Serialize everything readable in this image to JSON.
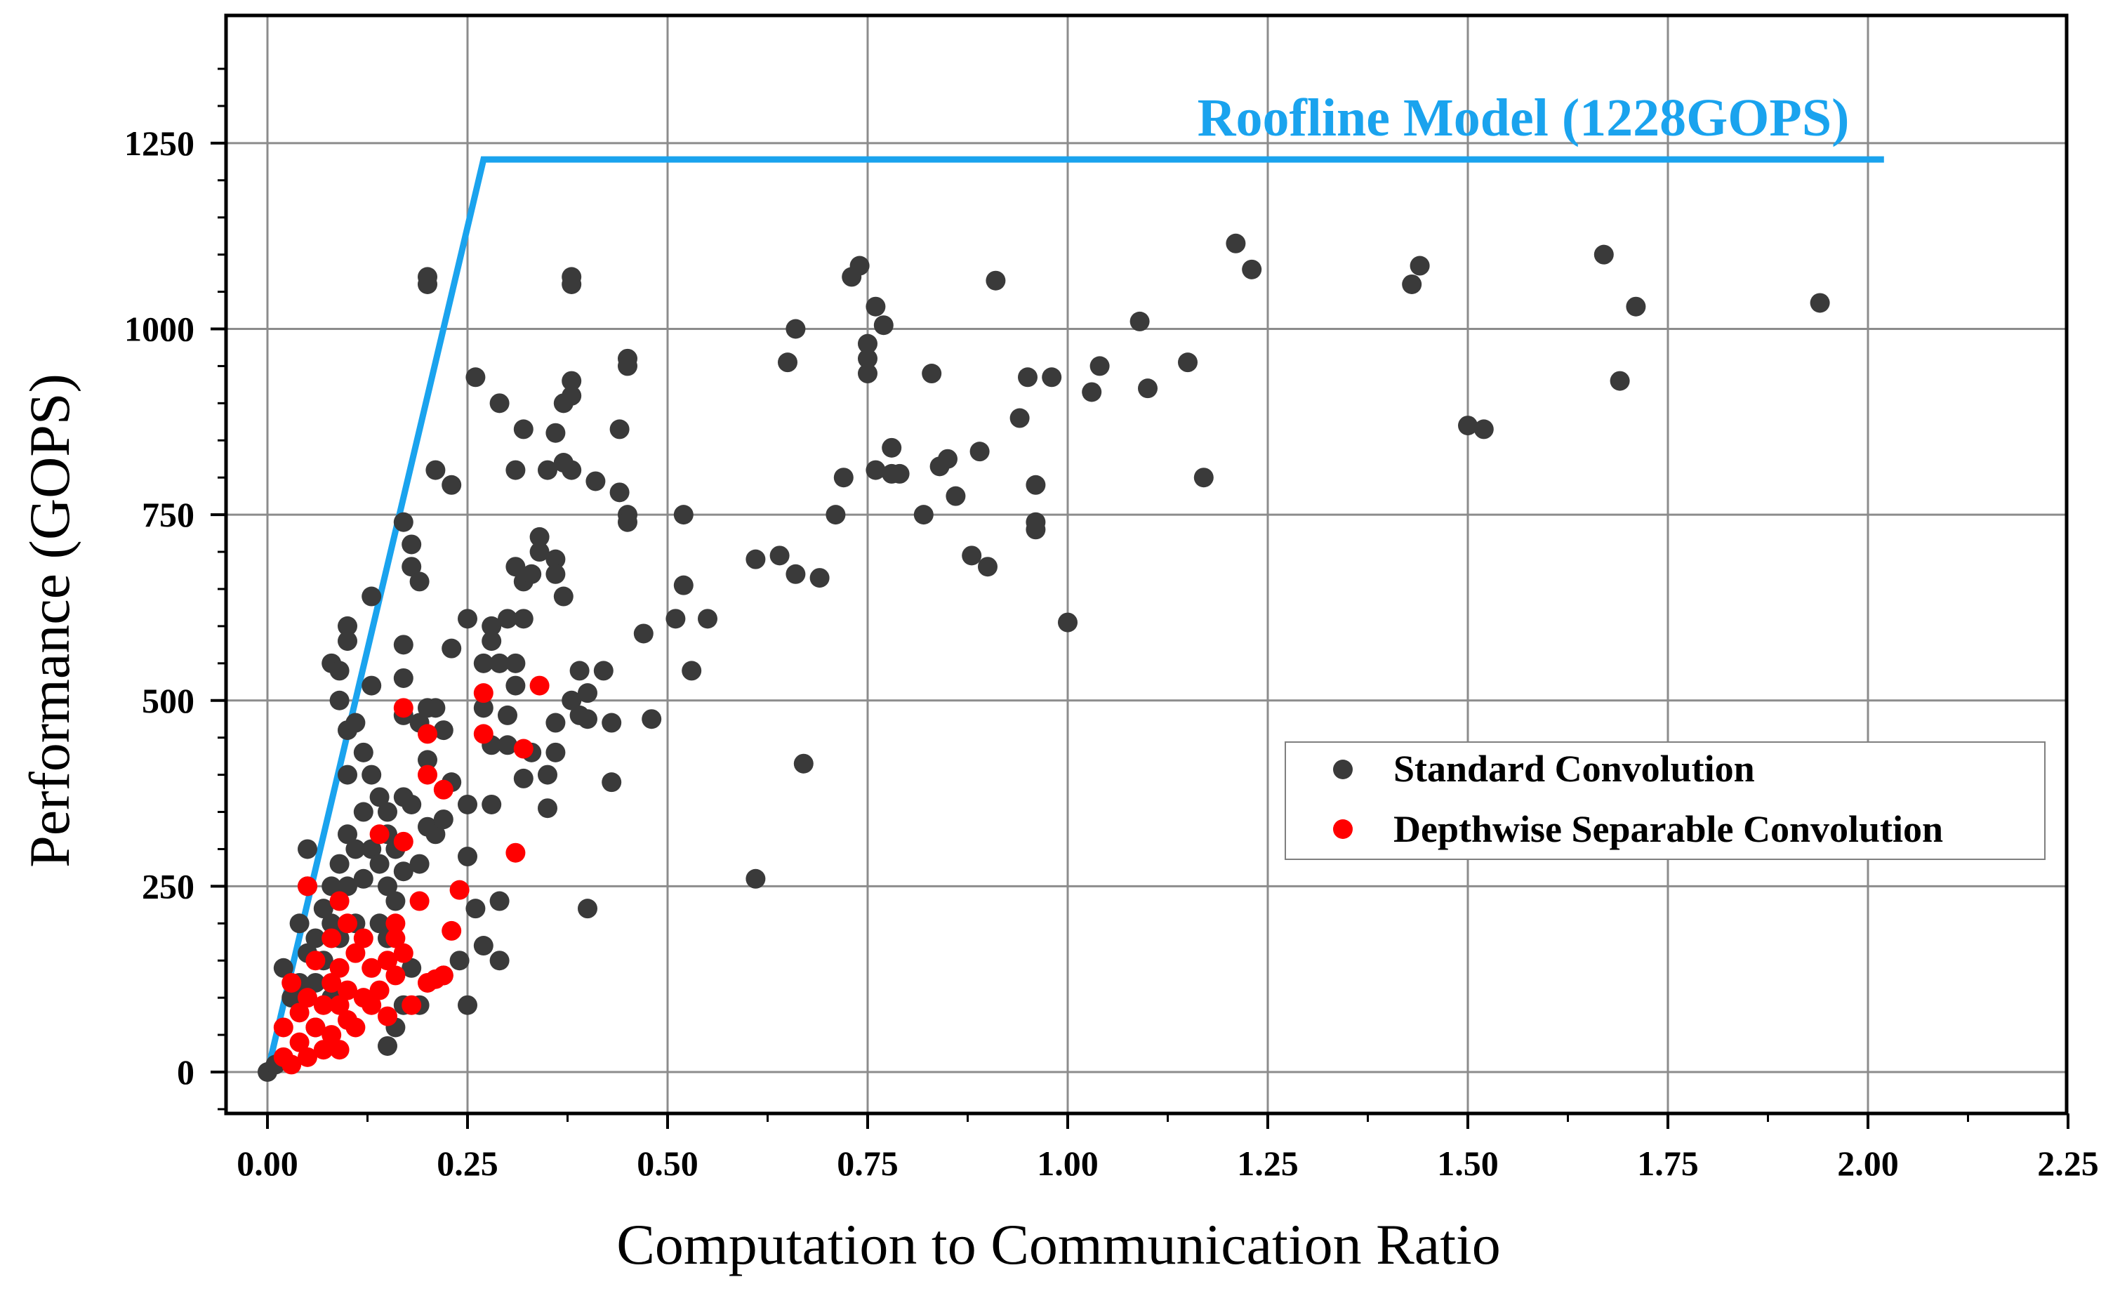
{
  "chart_data": {
    "type": "scatter",
    "title": "",
    "xlabel": "Computation to Communication Ratio",
    "ylabel": "Performance (GOPS)",
    "xlim": [
      -0.05,
      2.25
    ],
    "ylim": [
      -50,
      1400
    ],
    "grid": true,
    "xticks": [
      0,
      0.25,
      0.5,
      0.75,
      1.0,
      1.25,
      1.5,
      1.75,
      2.0,
      2.25
    ],
    "xtick_labels": [
      "0.00",
      "0.25",
      "0.50",
      "0.75",
      "1.00",
      "1.25",
      "1.50",
      "1.75",
      "2.00",
      "2.25"
    ],
    "yticks": [
      0,
      250,
      500,
      750,
      1000,
      1250
    ],
    "ytick_labels": [
      "0",
      "250",
      "500",
      "750",
      "1000",
      "1250"
    ],
    "roofline": {
      "label": "Roofline Model (1228GOPS)",
      "color": "#1aa3ee",
      "points": [
        [
          0,
          0
        ],
        [
          0.27,
          1228
        ],
        [
          2.02,
          1228
        ]
      ]
    },
    "legend": {
      "position": "center-right"
    },
    "series": [
      {
        "name": "Standard Convolution",
        "color": "#3a3a3a",
        "points": [
          [
            0.0,
            0
          ],
          [
            0.01,
            10
          ],
          [
            0.02,
            140
          ],
          [
            0.03,
            100
          ],
          [
            0.04,
            200
          ],
          [
            0.04,
            120
          ],
          [
            0.05,
            300
          ],
          [
            0.05,
            250
          ],
          [
            0.05,
            160
          ],
          [
            0.06,
            180
          ],
          [
            0.06,
            120
          ],
          [
            0.06,
            60
          ],
          [
            0.07,
            220
          ],
          [
            0.07,
            150
          ],
          [
            0.08,
            250
          ],
          [
            0.08,
            200
          ],
          [
            0.08,
            550
          ],
          [
            0.08,
            100
          ],
          [
            0.09,
            540
          ],
          [
            0.09,
            500
          ],
          [
            0.09,
            280
          ],
          [
            0.09,
            180
          ],
          [
            0.1,
            600
          ],
          [
            0.1,
            580
          ],
          [
            0.1,
            460
          ],
          [
            0.1,
            400
          ],
          [
            0.1,
            320
          ],
          [
            0.1,
            250
          ],
          [
            0.11,
            470
          ],
          [
            0.11,
            300
          ],
          [
            0.11,
            200
          ],
          [
            0.12,
            430
          ],
          [
            0.12,
            350
          ],
          [
            0.12,
            260
          ],
          [
            0.13,
            640
          ],
          [
            0.13,
            520
          ],
          [
            0.13,
            400
          ],
          [
            0.13,
            300
          ],
          [
            0.14,
            370
          ],
          [
            0.14,
            280
          ],
          [
            0.14,
            200
          ],
          [
            0.15,
            350
          ],
          [
            0.15,
            320
          ],
          [
            0.15,
            250
          ],
          [
            0.15,
            180
          ],
          [
            0.15,
            35
          ],
          [
            0.16,
            300
          ],
          [
            0.16,
            230
          ],
          [
            0.16,
            60
          ],
          [
            0.17,
            740
          ],
          [
            0.17,
            575
          ],
          [
            0.17,
            530
          ],
          [
            0.17,
            480
          ],
          [
            0.17,
            370
          ],
          [
            0.17,
            270
          ],
          [
            0.17,
            90
          ],
          [
            0.18,
            710
          ],
          [
            0.18,
            680
          ],
          [
            0.18,
            360
          ],
          [
            0.18,
            140
          ],
          [
            0.19,
            660
          ],
          [
            0.19,
            470
          ],
          [
            0.19,
            280
          ],
          [
            0.19,
            90
          ],
          [
            0.2,
            1070
          ],
          [
            0.2,
            1060
          ],
          [
            0.2,
            490
          ],
          [
            0.2,
            420
          ],
          [
            0.2,
            330
          ],
          [
            0.21,
            810
          ],
          [
            0.21,
            490
          ],
          [
            0.21,
            320
          ],
          [
            0.22,
            460
          ],
          [
            0.22,
            340
          ],
          [
            0.22,
            130
          ],
          [
            0.23,
            790
          ],
          [
            0.23,
            570
          ],
          [
            0.23,
            390
          ],
          [
            0.24,
            150
          ],
          [
            0.25,
            610
          ],
          [
            0.25,
            360
          ],
          [
            0.25,
            290
          ],
          [
            0.25,
            90
          ],
          [
            0.26,
            935
          ],
          [
            0.26,
            220
          ],
          [
            0.27,
            550
          ],
          [
            0.27,
            490
          ],
          [
            0.27,
            170
          ],
          [
            0.28,
            600
          ],
          [
            0.28,
            580
          ],
          [
            0.28,
            440
          ],
          [
            0.28,
            360
          ],
          [
            0.29,
            900
          ],
          [
            0.29,
            550
          ],
          [
            0.29,
            230
          ],
          [
            0.29,
            150
          ],
          [
            0.3,
            610
          ],
          [
            0.3,
            480
          ],
          [
            0.3,
            440
          ],
          [
            0.31,
            810
          ],
          [
            0.31,
            680
          ],
          [
            0.31,
            550
          ],
          [
            0.31,
            520
          ],
          [
            0.32,
            865
          ],
          [
            0.32,
            660
          ],
          [
            0.32,
            610
          ],
          [
            0.32,
            395
          ],
          [
            0.33,
            670
          ],
          [
            0.33,
            430
          ],
          [
            0.34,
            720
          ],
          [
            0.34,
            700
          ],
          [
            0.35,
            810
          ],
          [
            0.35,
            400
          ],
          [
            0.35,
            355
          ],
          [
            0.36,
            860
          ],
          [
            0.36,
            690
          ],
          [
            0.36,
            670
          ],
          [
            0.36,
            470
          ],
          [
            0.36,
            430
          ],
          [
            0.37,
            900
          ],
          [
            0.37,
            640
          ],
          [
            0.37,
            820
          ],
          [
            0.38,
            930
          ],
          [
            0.38,
            910
          ],
          [
            0.38,
            1070
          ],
          [
            0.38,
            1060
          ],
          [
            0.38,
            810
          ],
          [
            0.38,
            500
          ],
          [
            0.39,
            540
          ],
          [
            0.39,
            480
          ],
          [
            0.4,
            510
          ],
          [
            0.4,
            475
          ],
          [
            0.4,
            220
          ],
          [
            0.41,
            795
          ],
          [
            0.42,
            540
          ],
          [
            0.43,
            470
          ],
          [
            0.43,
            390
          ],
          [
            0.44,
            865
          ],
          [
            0.44,
            780
          ],
          [
            0.45,
            960
          ],
          [
            0.45,
            950
          ],
          [
            0.45,
            750
          ],
          [
            0.45,
            740
          ],
          [
            0.47,
            590
          ],
          [
            0.48,
            475
          ],
          [
            0.51,
            610
          ],
          [
            0.52,
            750
          ],
          [
            0.52,
            655
          ],
          [
            0.53,
            540
          ],
          [
            0.55,
            610
          ],
          [
            0.61,
            690
          ],
          [
            0.61,
            260
          ],
          [
            0.64,
            695
          ],
          [
            0.65,
            955
          ],
          [
            0.66,
            1000
          ],
          [
            0.66,
            670
          ],
          [
            0.67,
            415
          ],
          [
            0.69,
            665
          ],
          [
            0.71,
            750
          ],
          [
            0.72,
            800
          ],
          [
            0.73,
            1070
          ],
          [
            0.74,
            1085
          ],
          [
            0.75,
            980
          ],
          [
            0.75,
            960
          ],
          [
            0.75,
            940
          ],
          [
            0.76,
            1030
          ],
          [
            0.76,
            810
          ],
          [
            0.77,
            1005
          ],
          [
            0.78,
            840
          ],
          [
            0.78,
            805
          ],
          [
            0.79,
            805
          ],
          [
            0.82,
            750
          ],
          [
            0.83,
            940
          ],
          [
            0.84,
            815
          ],
          [
            0.85,
            825
          ],
          [
            0.86,
            775
          ],
          [
            0.88,
            695
          ],
          [
            0.89,
            835
          ],
          [
            0.9,
            680
          ],
          [
            0.91,
            1065
          ],
          [
            0.94,
            880
          ],
          [
            0.95,
            935
          ],
          [
            0.96,
            790
          ],
          [
            0.96,
            740
          ],
          [
            0.96,
            730
          ],
          [
            0.98,
            935
          ],
          [
            1.0,
            605
          ],
          [
            1.03,
            915
          ],
          [
            1.04,
            950
          ],
          [
            1.09,
            1010
          ],
          [
            1.1,
            920
          ],
          [
            1.15,
            955
          ],
          [
            1.17,
            800
          ],
          [
            1.21,
            1115
          ],
          [
            1.23,
            1080
          ],
          [
            1.43,
            1060
          ],
          [
            1.44,
            1085
          ],
          [
            1.5,
            870
          ],
          [
            1.52,
            865
          ],
          [
            1.67,
            1100
          ],
          [
            1.69,
            930
          ],
          [
            1.71,
            1030
          ],
          [
            1.94,
            1035
          ]
        ]
      },
      {
        "name": "Depthwise Separable Convolution",
        "color": "#ff0000",
        "points": [
          [
            0.02,
            20
          ],
          [
            0.02,
            60
          ],
          [
            0.03,
            120
          ],
          [
            0.03,
            10
          ],
          [
            0.04,
            80
          ],
          [
            0.04,
            40
          ],
          [
            0.05,
            100
          ],
          [
            0.05,
            20
          ],
          [
            0.05,
            250
          ],
          [
            0.06,
            150
          ],
          [
            0.06,
            60
          ],
          [
            0.07,
            90
          ],
          [
            0.07,
            30
          ],
          [
            0.08,
            120
          ],
          [
            0.08,
            180
          ],
          [
            0.08,
            50
          ],
          [
            0.09,
            230
          ],
          [
            0.09,
            140
          ],
          [
            0.09,
            90
          ],
          [
            0.09,
            30
          ],
          [
            0.1,
            110
          ],
          [
            0.1,
            70
          ],
          [
            0.1,
            200
          ],
          [
            0.11,
            160
          ],
          [
            0.11,
            60
          ],
          [
            0.12,
            100
          ],
          [
            0.12,
            180
          ],
          [
            0.13,
            90
          ],
          [
            0.13,
            140
          ],
          [
            0.14,
            320
          ],
          [
            0.14,
            110
          ],
          [
            0.15,
            75
          ],
          [
            0.15,
            150
          ],
          [
            0.16,
            200
          ],
          [
            0.16,
            180
          ],
          [
            0.16,
            130
          ],
          [
            0.17,
            490
          ],
          [
            0.17,
            160
          ],
          [
            0.17,
            310
          ],
          [
            0.18,
            90
          ],
          [
            0.19,
            230
          ],
          [
            0.2,
            400
          ],
          [
            0.2,
            455
          ],
          [
            0.2,
            120
          ],
          [
            0.21,
            125
          ],
          [
            0.22,
            380
          ],
          [
            0.22,
            130
          ],
          [
            0.23,
            190
          ],
          [
            0.24,
            245
          ],
          [
            0.27,
            455
          ],
          [
            0.27,
            510
          ],
          [
            0.31,
            295
          ],
          [
            0.32,
            435
          ],
          [
            0.34,
            520
          ]
        ]
      }
    ]
  }
}
